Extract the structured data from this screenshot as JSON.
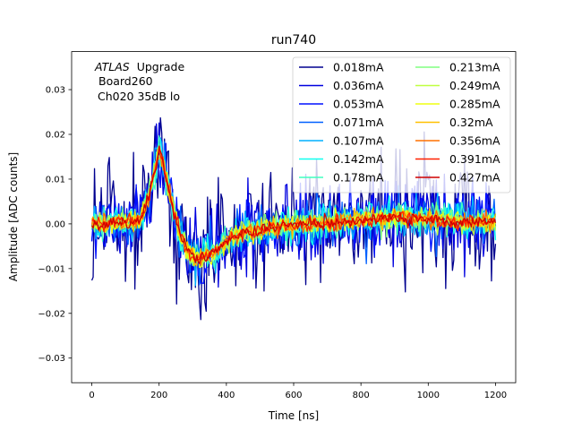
{
  "chart_data": {
    "type": "line",
    "title": "run740",
    "xlabel": "Time [ns]",
    "ylabel": "Amplitude [ADC counts]",
    "xlim": [
      -60,
      1260
    ],
    "ylim": [
      -0.0355,
      0.0385
    ],
    "xticks": [
      0,
      200,
      400,
      600,
      800,
      1000,
      1200
    ],
    "xtick_labels": [
      "0",
      "200",
      "400",
      "600",
      "800",
      "1000",
      "1200"
    ],
    "yticks": [
      -0.03,
      -0.02,
      -0.01,
      0.0,
      0.01,
      0.02,
      0.03
    ],
    "ytick_labels": [
      "−0.03",
      "−0.02",
      "−0.01",
      "0.00",
      "0.01",
      "0.02",
      "0.03"
    ],
    "annotation": {
      "experiment": "ATLAS",
      "experiment_suffix": "Upgrade",
      "line2": "Board260",
      "line3": "Ch020 35dB lo"
    },
    "legend": {
      "placement": "top-right",
      "columns": 2
    },
    "x_range": [
      0,
      1200
    ],
    "time_step_ns": 4,
    "pulse_shape": {
      "x": [
        0,
        140,
        170,
        195,
        200,
        215,
        240,
        260,
        290,
        320,
        360,
        420,
        480,
        560,
        640,
        700,
        800,
        880,
        920,
        980,
        1040,
        1100,
        1200
      ],
      "y": [
        0.0,
        0.0005,
        0.006,
        0.0145,
        0.0165,
        0.013,
        0.004,
        -0.002,
        -0.0065,
        -0.008,
        -0.0065,
        -0.003,
        -0.0015,
        -0.0005,
        0.0,
        0.0003,
        0.0008,
        0.0012,
        0.0015,
        0.0012,
        0.0008,
        0.0005,
        0.0003
      ]
    },
    "series": [
      {
        "name": "0.018mA",
        "color": "#00008f",
        "noise_adc": 0.0075
      },
      {
        "name": "0.036mA",
        "color": "#0000df",
        "noise_adc": 0.0045
      },
      {
        "name": "0.053mA",
        "color": "#0010ff",
        "noise_adc": 0.0034
      },
      {
        "name": "0.071mA",
        "color": "#0060ff",
        "noise_adc": 0.0029
      },
      {
        "name": "0.107mA",
        "color": "#00b0ff",
        "noise_adc": 0.0023
      },
      {
        "name": "0.142mA",
        "color": "#10ffef",
        "noise_adc": 0.0019
      },
      {
        "name": "0.178mA",
        "color": "#40ffbf",
        "noise_adc": 0.0016
      },
      {
        "name": "0.213mA",
        "color": "#80ff80",
        "noise_adc": 0.0014
      },
      {
        "name": "0.249mA",
        "color": "#bfff40",
        "noise_adc": 0.0012
      },
      {
        "name": "0.285mA",
        "color": "#efff10",
        "noise_adc": 0.0011
      },
      {
        "name": "0.32mA",
        "color": "#ffc000",
        "noise_adc": 0.001
      },
      {
        "name": "0.356mA",
        "color": "#ff7000",
        "noise_adc": 0.0009
      },
      {
        "name": "0.391mA",
        "color": "#ff2000",
        "noise_adc": 0.0008
      },
      {
        "name": "0.427mA",
        "color": "#cf0000",
        "noise_adc": 0.0007
      }
    ]
  }
}
